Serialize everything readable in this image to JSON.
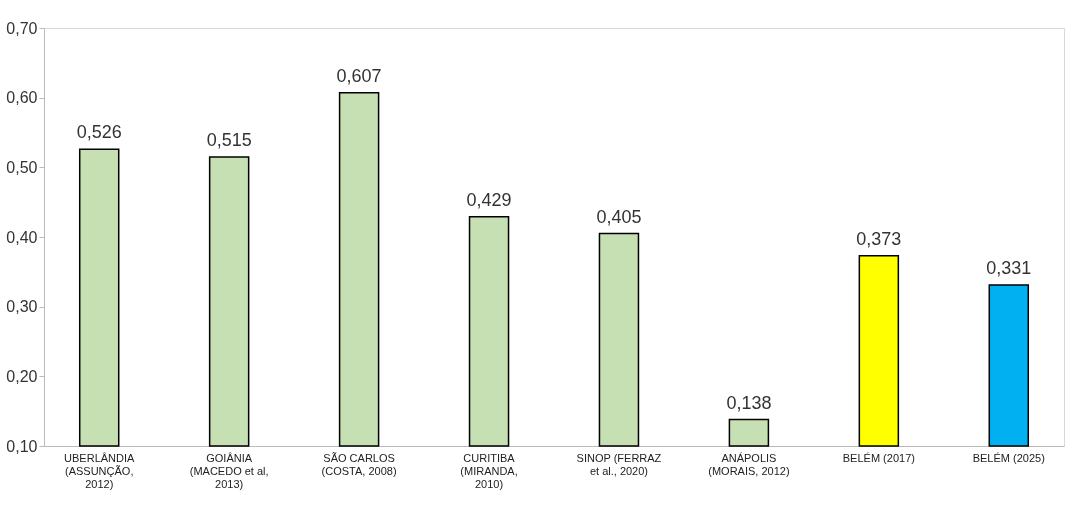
{
  "chart_data": {
    "type": "bar",
    "categories": [
      "UBERLÂNDIA (ASSUNÇÃO, 2012)",
      "GOIÂNIA (MACEDO et al, 2013)",
      "SÃO CARLOS (COSTA, 2008)",
      "CURITIBA (MIRANDA, 2010)",
      "SINOP (FERRAZ et al., 2020)",
      "ANÁPOLIS (MORAIS, 2012)",
      "BELÉM (2017)",
      "BELÉM (2025)"
    ],
    "values": [
      0.526,
      0.515,
      0.607,
      0.429,
      0.405,
      0.138,
      0.373,
      0.331
    ],
    "colors": [
      "#c6e0b4",
      "#c6e0b4",
      "#c6e0b4",
      "#c6e0b4",
      "#c6e0b4",
      "#c6e0b4",
      "#ffff00",
      "#00b0f0"
    ],
    "ylim": [
      0.1,
      0.7
    ],
    "yticks": [
      {
        "value": 0.1,
        "label": "0,10"
      },
      {
        "value": 0.2,
        "label": "0,20"
      },
      {
        "value": 0.3,
        "label": "0,30"
      },
      {
        "value": 0.4,
        "label": "0,40"
      },
      {
        "value": 0.5,
        "label": "0,50"
      },
      {
        "value": 0.6,
        "label": "0,60"
      },
      {
        "value": 0.7,
        "label": "0,70"
      }
    ],
    "value_labels": [
      "0,526",
      "0,515",
      "0,607",
      "0,429",
      "0,405",
      "0,138",
      "0,373",
      "0,331"
    ],
    "grid": false
  }
}
